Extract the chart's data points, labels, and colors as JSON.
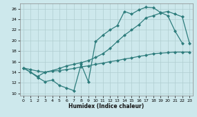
{
  "xlabel": "Humidex (Indice chaleur)",
  "xlim": [
    -0.5,
    23.5
  ],
  "ylim": [
    9.5,
    27
  ],
  "yticks": [
    10,
    12,
    14,
    16,
    18,
    20,
    22,
    24,
    26
  ],
  "xticks": [
    0,
    1,
    2,
    3,
    4,
    5,
    6,
    7,
    8,
    9,
    10,
    11,
    12,
    13,
    14,
    15,
    16,
    17,
    18,
    19,
    20,
    21,
    22,
    23
  ],
  "bg_color": "#cde8ec",
  "grid_color": "#b0cdd0",
  "line_color": "#2d7c7c",
  "line1_x": [
    0,
    1,
    2,
    3,
    4,
    5,
    6,
    7,
    8,
    9,
    10,
    11,
    12,
    13,
    14,
    15,
    16,
    17,
    18,
    19,
    20,
    21,
    22
  ],
  "line1_y": [
    14.8,
    14.0,
    13.0,
    12.2,
    12.5,
    11.5,
    11.0,
    10.5,
    15.5,
    12.2,
    19.8,
    21.0,
    22.0,
    22.8,
    25.5,
    25.0,
    25.8,
    26.3,
    26.2,
    25.3,
    24.7,
    21.8,
    19.5
  ],
  "line2_x": [
    0,
    2,
    3,
    4,
    5,
    6,
    7,
    8,
    9,
    10,
    11,
    12,
    13,
    14,
    15,
    16,
    17,
    18,
    19,
    20,
    21,
    22,
    23
  ],
  "line2_y": [
    14.8,
    13.2,
    14.0,
    14.3,
    14.7,
    15.2,
    15.5,
    15.8,
    16.2,
    16.8,
    17.5,
    18.5,
    19.8,
    21.0,
    22.0,
    23.0,
    24.3,
    24.7,
    25.2,
    25.5,
    25.0,
    24.5,
    19.5
  ],
  "line3_x": [
    0,
    1,
    2,
    3,
    4,
    5,
    6,
    7,
    8,
    9,
    10,
    11,
    12,
    13,
    14,
    15,
    16,
    17,
    18,
    19,
    20,
    21,
    22,
    23
  ],
  "line3_y": [
    14.8,
    14.5,
    14.2,
    14.0,
    14.2,
    14.3,
    14.5,
    14.7,
    15.0,
    15.2,
    15.5,
    15.7,
    16.0,
    16.2,
    16.5,
    16.7,
    17.0,
    17.2,
    17.5,
    17.6,
    17.7,
    17.8,
    17.8,
    17.8
  ]
}
